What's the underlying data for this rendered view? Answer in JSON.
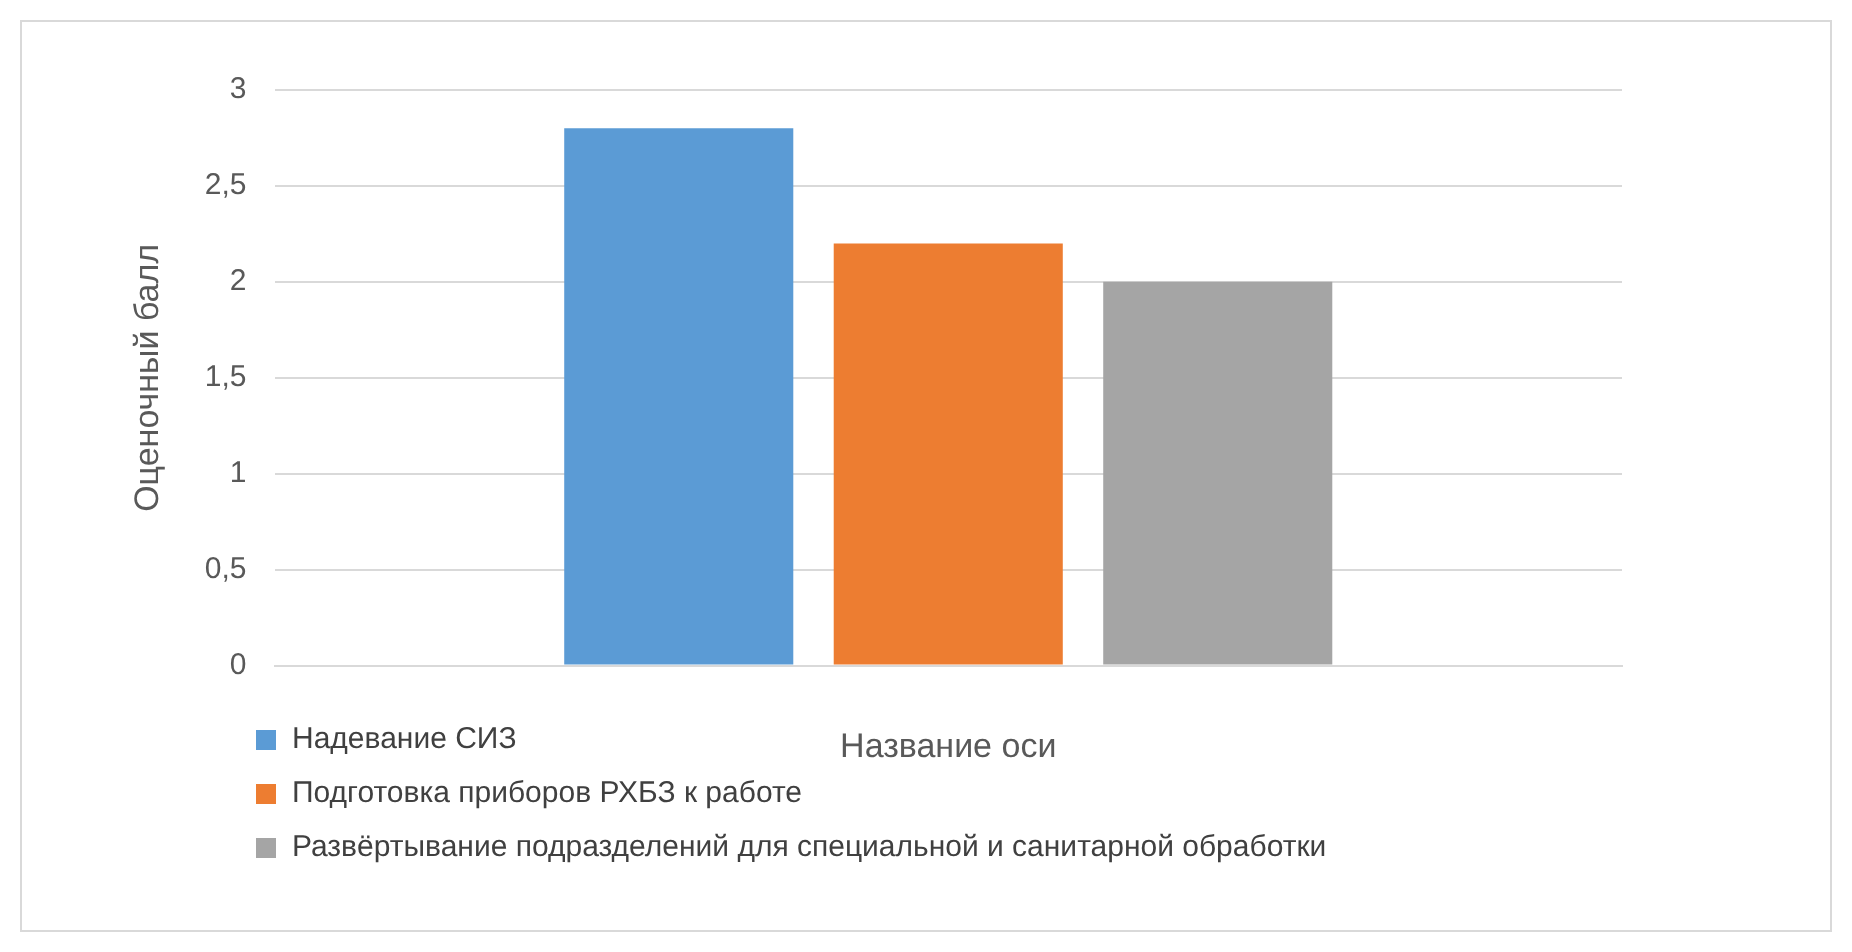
{
  "chart_data": {
    "type": "bar",
    "xlabel": "Название оси",
    "ylabel": "Оценочный балл",
    "categories": [
      null
    ],
    "series": [
      {
        "name": "Надевание СИЗ",
        "color": "#5b9bd5",
        "values": [
          2.8
        ]
      },
      {
        "name": "Подготовка приборов РХБЗ к работе",
        "color": "#ed7d31",
        "values": [
          2.2
        ]
      },
      {
        "name": "Развёртывание подразделений для специальной и санитарной обработки",
        "color": "#a5a5a5",
        "values": [
          2.0
        ]
      }
    ],
    "ylim": [
      0,
      3
    ],
    "yticks": [
      0,
      {
        "value": 0.5,
        "label": "0,5"
      },
      1,
      {
        "value": 1.5,
        "label": "1,5"
      },
      2,
      {
        "value": 2.5,
        "label": "2,5"
      },
      3
    ],
    "grid": "y",
    "legend": "bottom left"
  }
}
